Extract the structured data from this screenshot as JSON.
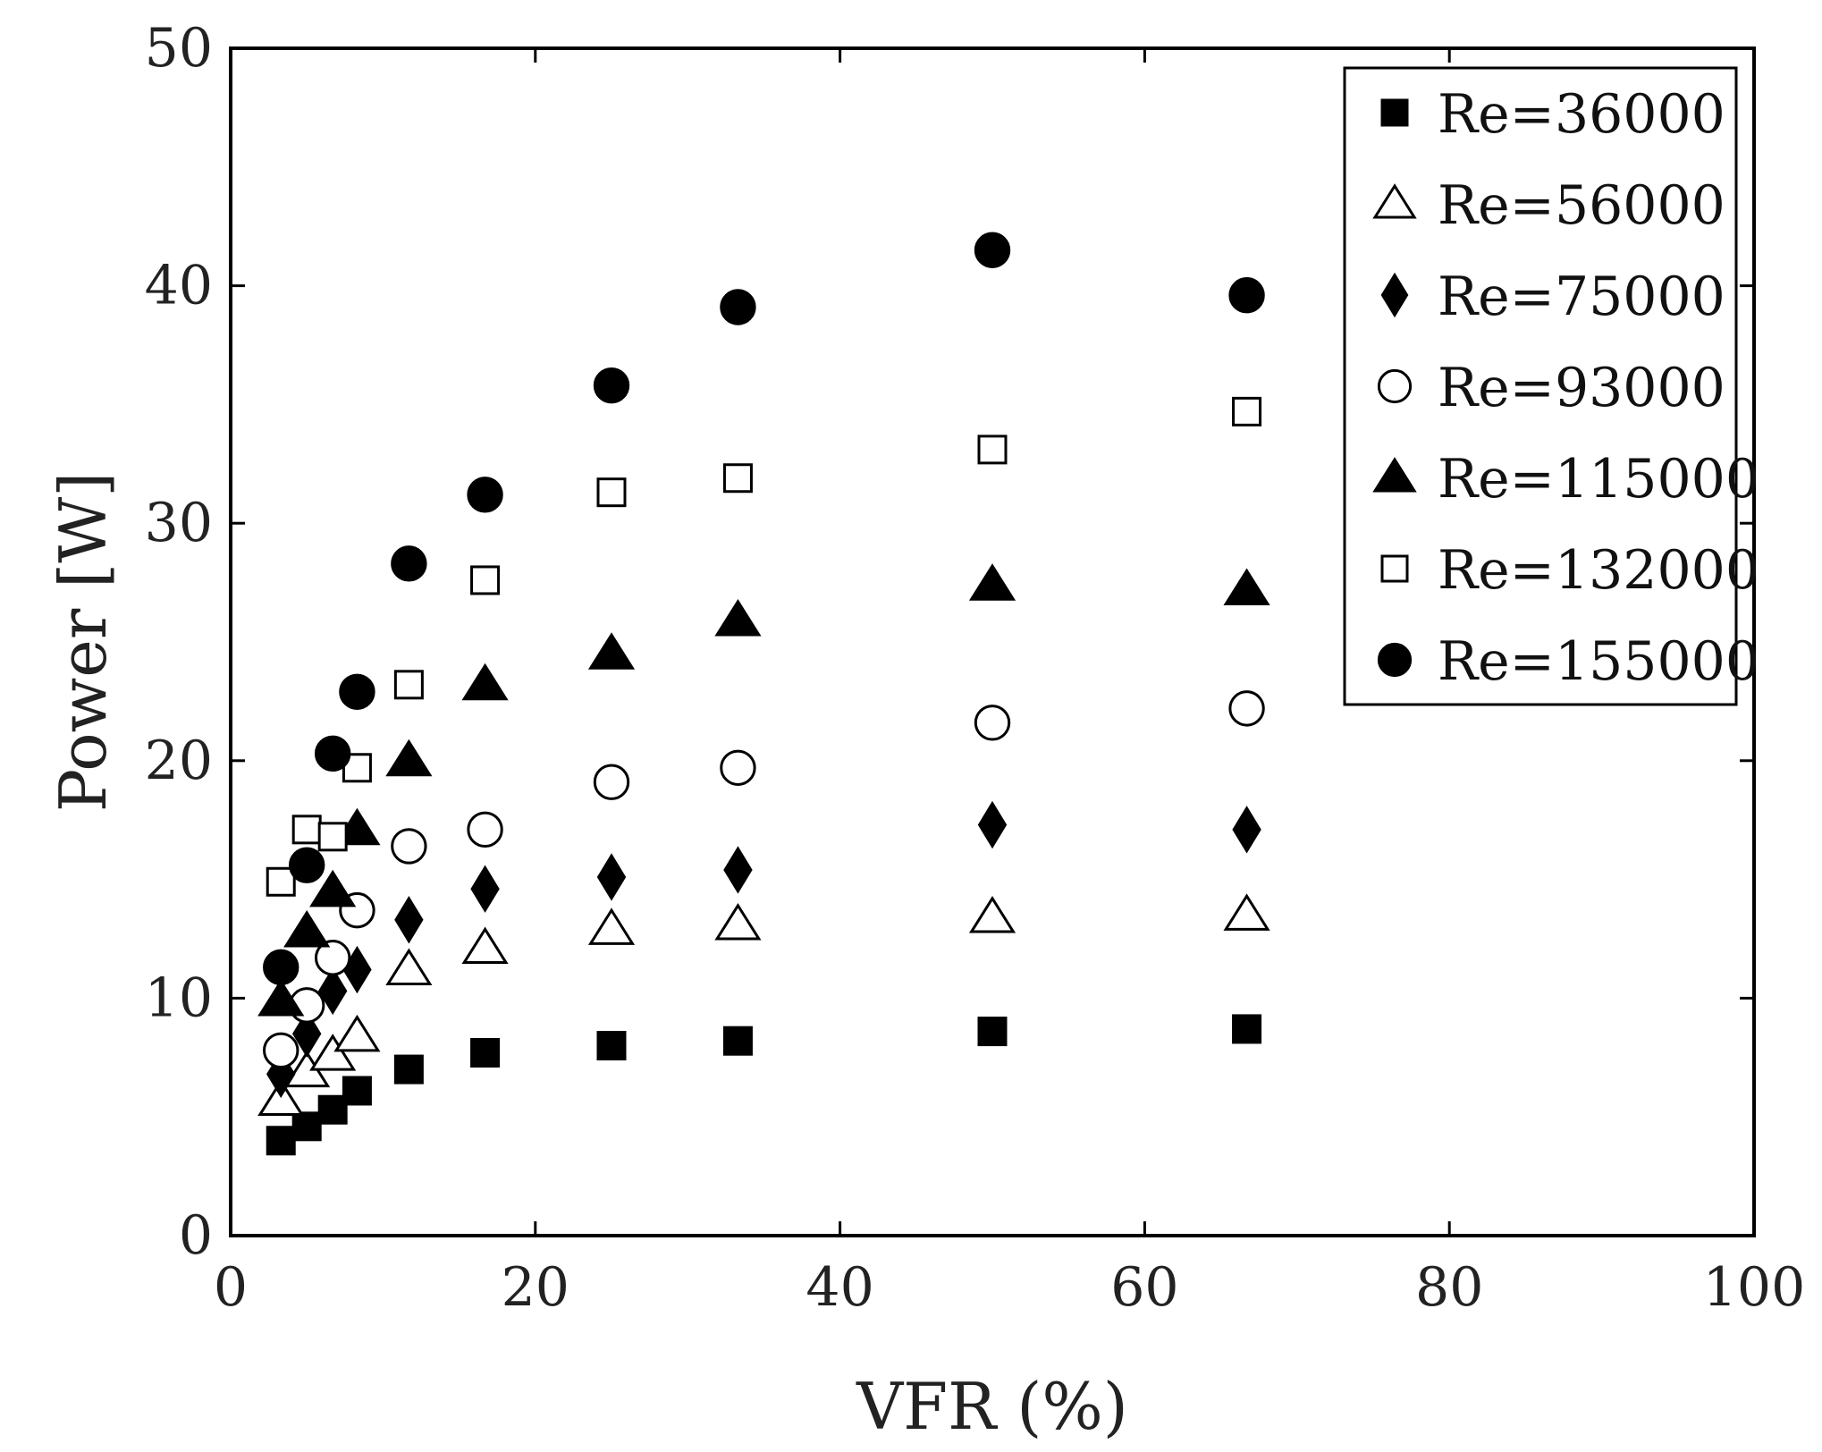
{
  "chart_data": {
    "type": "scatter",
    "title": "",
    "xlabel": "VFR (%)",
    "ylabel": "Power [W]",
    "xlim": [
      0,
      100
    ],
    "ylim": [
      0,
      50
    ],
    "xticks": [
      "0",
      "20",
      "40",
      "60",
      "80",
      "100"
    ],
    "yticks": [
      "0",
      "10",
      "20",
      "30",
      "40",
      "50"
    ],
    "grid": false,
    "legend_position": "top-right",
    "x": [
      3.3,
      5,
      6.7,
      8.3,
      11.7,
      16.7,
      25,
      33.3,
      50,
      66.7
    ],
    "series": [
      {
        "name": "Re=36000",
        "marker": "square",
        "filled": true,
        "values": [
          4.0,
          4.6,
          5.3,
          6.1,
          7.0,
          7.7,
          8.0,
          8.2,
          8.6,
          8.7
        ]
      },
      {
        "name": "Re=56000",
        "marker": "triangle",
        "filled": false,
        "values": [
          5.7,
          6.9,
          7.6,
          8.4,
          11.2,
          12.1,
          12.9,
          13.1,
          13.4,
          13.5
        ]
      },
      {
        "name": "Re=75000",
        "marker": "diamond",
        "filled": true,
        "values": [
          6.8,
          8.5,
          10.3,
          11.2,
          13.3,
          14.6,
          15.1,
          15.4,
          17.3,
          17.1
        ]
      },
      {
        "name": "Re=93000",
        "marker": "circle",
        "filled": false,
        "values": [
          7.8,
          9.7,
          11.7,
          13.7,
          16.4,
          17.1,
          19.1,
          19.7,
          21.6,
          22.2
        ]
      },
      {
        "name": "Re=115000",
        "marker": "triangle",
        "filled": true,
        "values": [
          9.9,
          12.8,
          14.5,
          17.1,
          20.0,
          23.2,
          24.5,
          25.9,
          27.4,
          27.2
        ]
      },
      {
        "name": "Re=132000",
        "marker": "square",
        "filled": false,
        "values": [
          14.9,
          17.1,
          16.8,
          19.7,
          23.2,
          27.6,
          31.3,
          31.9,
          33.1,
          34.7
        ]
      },
      {
        "name": "Re=155000",
        "marker": "circle",
        "filled": true,
        "values": [
          11.3,
          15.6,
          20.3,
          22.9,
          28.3,
          31.2,
          35.8,
          39.1,
          41.5,
          39.6
        ]
      }
    ]
  }
}
